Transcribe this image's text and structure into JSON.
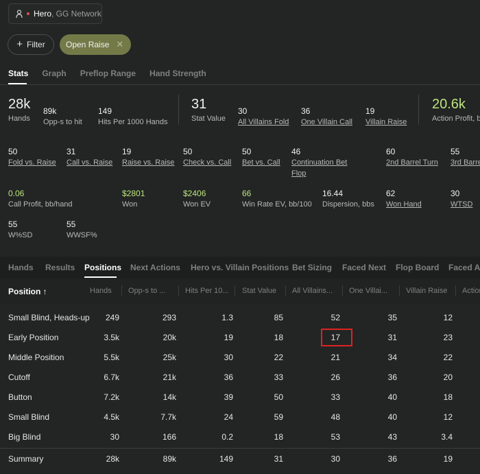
{
  "player": {
    "icon": "user-icon",
    "hero": "Hero",
    "network": ", GG Network"
  },
  "filter": {
    "label": "Filter",
    "open_raise": "Open Raise",
    "remove": "✕"
  },
  "tabs": [
    "Stats",
    "Graph",
    "Preflop Range",
    "Hand Strength"
  ],
  "summary_stats": {
    "hands_v": "28k",
    "hands_l": "Hands",
    "opps_v": "89k",
    "opps_l": "Opp-s to hit",
    "hits_v": "149",
    "hits_l": "Hits Per 1000 Hands",
    "statval_v": "31",
    "statval_l": "Stat Value",
    "avf_v": "30",
    "avf_l": "All Villains Fold",
    "ovc_v": "36",
    "ovc_l": "One Villain Call",
    "vr_v": "19",
    "vr_l": "Villain Raise",
    "ap_v": "20.6k",
    "ap_l": "Action Profit, b"
  },
  "stats_row2": [
    {
      "v": "50",
      "l": "Fold vs. Raise"
    },
    {
      "v": "31",
      "l": "Call vs. Raise"
    },
    {
      "v": "19",
      "l": "Raise vs. Raise"
    },
    {
      "v": "50",
      "l": "Check vs. Call"
    },
    {
      "v": "50",
      "l": "Bet vs. Call"
    },
    {
      "v": "46",
      "l": "Continuation Bet",
      "l2": "Flop"
    },
    {
      "v": "60",
      "l": "2nd Barrel Turn"
    },
    {
      "v": "55",
      "l": "3rd Barre"
    }
  ],
  "stats_row3": [
    {
      "v": "0.06",
      "l": "Call Profit, bb/hand"
    },
    {
      "v": "$2801",
      "l": "Won"
    },
    {
      "v": "$2406",
      "l": "Won EV"
    },
    {
      "v": "66",
      "l": "Win Rate EV, bb/100"
    },
    {
      "v": "16.44",
      "l": "Dispersion, bbs"
    },
    {
      "v": "62",
      "l": "Won Hand"
    },
    {
      "v": "30",
      "l": "WTSD"
    }
  ],
  "stats_row4": [
    {
      "v": "55",
      "l": "W%SD"
    },
    {
      "v": "55",
      "l": "WWSF%"
    }
  ],
  "tabs2": [
    "Hands",
    "Results",
    "Positions",
    "Next Actions",
    "Hero vs. Villain Positions",
    "Bet Sizing",
    "Faced Next",
    "Flop Board",
    "Faced Ac"
  ],
  "table": {
    "headers": [
      "Position ↑",
      "Hands",
      "Opp-s to ...",
      "Hits Per 10...",
      "Stat Value",
      "All Villains...",
      "One Villai...",
      "Villain Raise",
      "Action"
    ],
    "rows": [
      [
        "Small Blind, Heads-up",
        "249",
        "293",
        "1.3",
        "85",
        "52",
        "35",
        "12"
      ],
      [
        "Early Position",
        "3.5k",
        "20k",
        "19",
        "18",
        "17",
        "31",
        "23"
      ],
      [
        "Middle Position",
        "5.5k",
        "25k",
        "30",
        "22",
        "21",
        "34",
        "22"
      ],
      [
        "Cutoff",
        "6.7k",
        "21k",
        "36",
        "33",
        "26",
        "36",
        "20"
      ],
      [
        "Button",
        "7.2k",
        "14k",
        "39",
        "50",
        "33",
        "40",
        "18"
      ],
      [
        "Small Blind",
        "4.5k",
        "7.7k",
        "24",
        "59",
        "48",
        "40",
        "12"
      ],
      [
        "Big Blind",
        "30",
        "166",
        "0.2",
        "18",
        "53",
        "43",
        "3.4"
      ]
    ],
    "summary": [
      "Summary",
      "28k",
      "89k",
      "149",
      "31",
      "30",
      "36",
      "19"
    ]
  },
  "colors": {
    "accent_green": "#bde37c",
    "chip": "#737a48",
    "highlight": "#e02222"
  }
}
